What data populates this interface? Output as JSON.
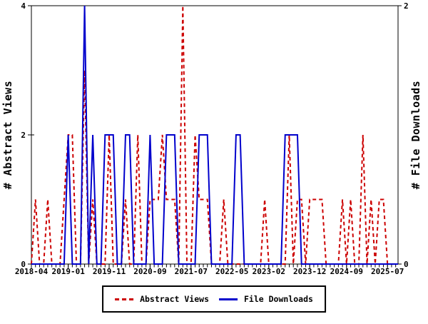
{
  "chart_data": {
    "type": "line",
    "title": "",
    "months": [
      "2018-04",
      "2018-05",
      "2018-06",
      "2018-07",
      "2018-08",
      "2018-09",
      "2018-10",
      "2018-11",
      "2018-12",
      "2019-01",
      "2019-02",
      "2019-03",
      "2019-04",
      "2019-05",
      "2019-06",
      "2019-07",
      "2019-08",
      "2019-09",
      "2019-10",
      "2019-11",
      "2019-12",
      "2020-01",
      "2020-02",
      "2020-03",
      "2020-04",
      "2020-05",
      "2020-06",
      "2020-07",
      "2020-08",
      "2020-09",
      "2020-10",
      "2020-11",
      "2020-12",
      "2021-01",
      "2021-02",
      "2021-03",
      "2021-04",
      "2021-05",
      "2021-06",
      "2021-07",
      "2021-08",
      "2021-09",
      "2021-10",
      "2021-11",
      "2021-12",
      "2022-01",
      "2022-02",
      "2022-03",
      "2022-04",
      "2022-05",
      "2022-06",
      "2022-07",
      "2022-08",
      "2022-09",
      "2022-10",
      "2022-11",
      "2022-12",
      "2023-01",
      "2023-02",
      "2023-03",
      "2023-04",
      "2023-05",
      "2023-06",
      "2023-07",
      "2023-08",
      "2023-09",
      "2023-10",
      "2023-11",
      "2023-12",
      "2024-01",
      "2024-02",
      "2024-03",
      "2024-04",
      "2024-05",
      "2024-06",
      "2024-07",
      "2024-08",
      "2024-09",
      "2024-10",
      "2024-11",
      "2024-12",
      "2025-01",
      "2025-02",
      "2025-03",
      "2025-04",
      "2025-05",
      "2025-06",
      "2025-07"
    ],
    "series": [
      {
        "name": "Abstract Views",
        "axis": "left",
        "color": "#cc0000",
        "style": "dashed",
        "values": [
          0,
          1,
          0,
          0,
          1,
          0,
          0,
          0,
          1,
          2,
          2,
          0,
          0,
          3,
          0,
          1,
          0,
          0,
          0,
          2,
          0,
          0,
          0,
          1,
          0,
          0,
          2,
          0,
          0,
          1,
          1,
          1,
          2,
          1,
          1,
          1,
          0,
          4,
          0,
          0,
          2,
          1,
          1,
          1,
          0,
          0,
          0,
          1,
          0,
          0,
          0,
          0,
          0,
          0,
          0,
          0,
          0,
          1,
          0,
          0,
          0,
          0,
          0,
          2,
          0,
          1,
          1,
          0,
          1,
          1,
          1,
          1,
          0,
          0,
          0,
          0,
          1,
          0,
          1,
          0,
          0,
          2,
          0,
          1,
          0,
          1,
          1,
          0
        ]
      },
      {
        "name": "File Downloads",
        "axis": "right",
        "color": "#0000cc",
        "style": "solid",
        "values": [
          0,
          0,
          0,
          0,
          0,
          0,
          0,
          0,
          0,
          1,
          0,
          0,
          0,
          2,
          0,
          1,
          0,
          0,
          1,
          1,
          1,
          0,
          0,
          1,
          1,
          0,
          0,
          0,
          0,
          1,
          0,
          0,
          0,
          1,
          1,
          1,
          0,
          0,
          0,
          0,
          0,
          1,
          1,
          1,
          0,
          0,
          0,
          0,
          0,
          0,
          1,
          1,
          0,
          0,
          0,
          0,
          0,
          0,
          0,
          0,
          0,
          0,
          1,
          1,
          1,
          1,
          0,
          0,
          0,
          0,
          0,
          0,
          0,
          0,
          0,
          0,
          0,
          0,
          0,
          0,
          0,
          0,
          0,
          0,
          0,
          0,
          0,
          0
        ]
      }
    ],
    "left_axis": {
      "label": "# Abstract Views",
      "min": 0,
      "max": 4,
      "ticks": [
        0,
        2,
        4
      ]
    },
    "right_axis": {
      "label": "# File Downloads",
      "min": 0,
      "max": 2,
      "ticks": [
        0,
        2
      ]
    },
    "x_tick_labels": [
      "2018-04",
      "2019-01",
      "2019-11",
      "2020-09",
      "2021-07",
      "2022-05",
      "2023-02",
      "2023-12",
      "2024-09",
      "2025-07"
    ],
    "legend": {
      "entries": [
        "Abstract Views",
        "File Downloads"
      ]
    },
    "layout_hints": {
      "grid": false,
      "legend_position": "bottom-center",
      "frame": true
    }
  }
}
